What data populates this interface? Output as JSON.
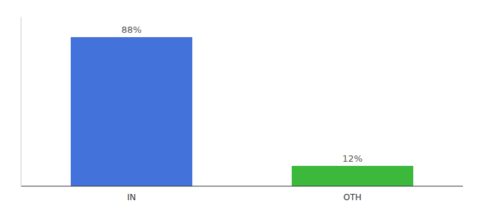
{
  "chart_data": {
    "type": "bar",
    "categories": [
      "IN",
      "OTH"
    ],
    "values": [
      88,
      12
    ],
    "value_labels": [
      "88%",
      "12%"
    ],
    "colors": [
      "#4472db",
      "#3cb83c"
    ],
    "ylim": [
      0,
      100
    ],
    "data_labels": true,
    "tick_labels": "x",
    "grid": false
  }
}
